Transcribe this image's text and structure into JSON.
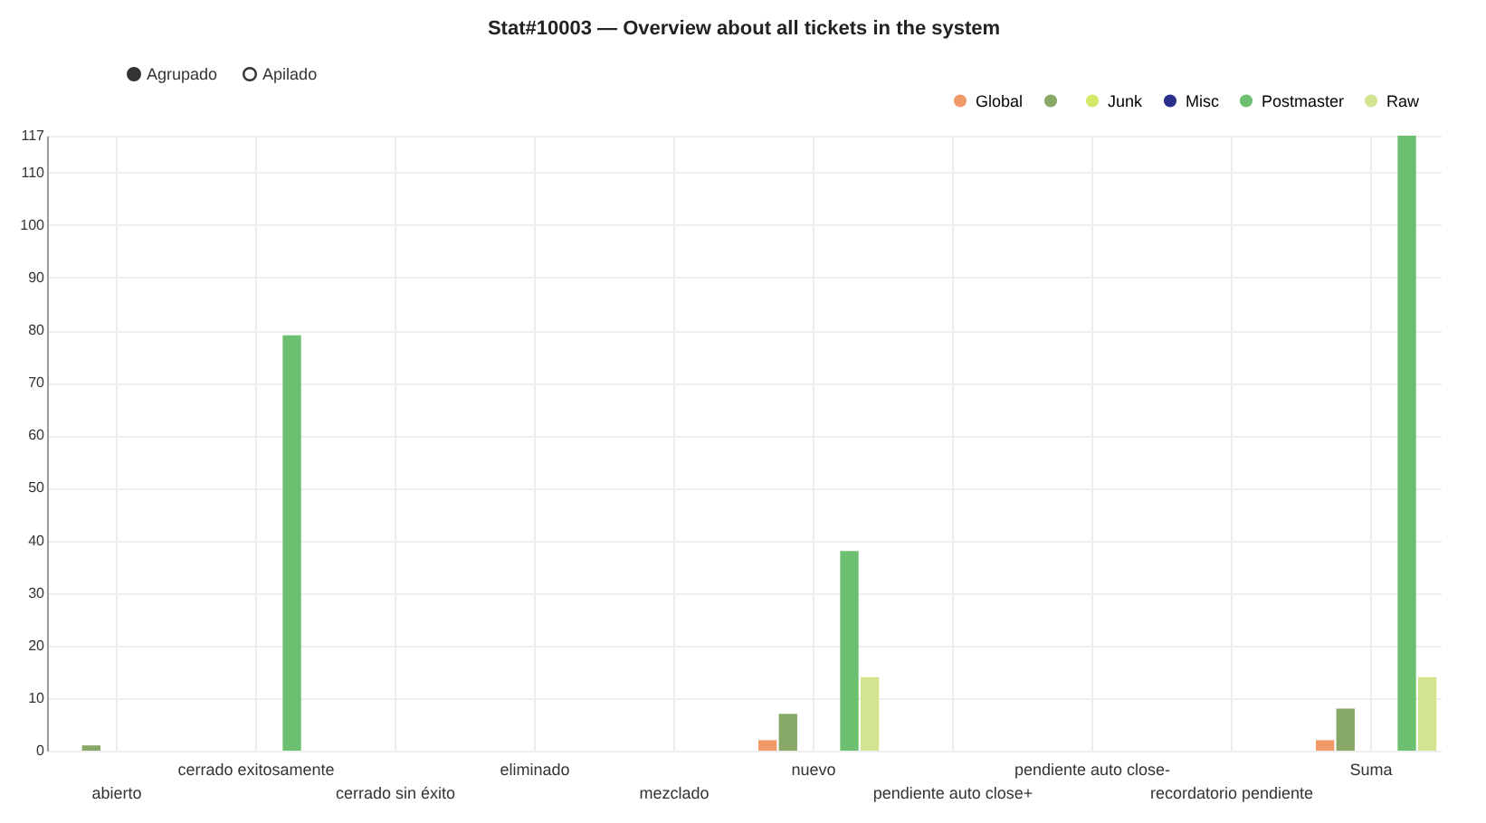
{
  "chart_data": {
    "type": "bar",
    "title": "Stat#10003 — Overview about all tickets in the system",
    "categories": [
      "abierto",
      "cerrado exitosamente",
      "cerrado sin éxito",
      "eliminado",
      "mezclado",
      "nuevo",
      "pendiente auto close+",
      "pendiente auto close-",
      "recordatorio pendiente",
      "Suma"
    ],
    "series": [
      {
        "name": "Global",
        "color": "#f09a6a",
        "values": [
          0,
          0,
          0,
          0,
          0,
          2,
          0,
          0,
          0,
          2
        ]
      },
      {
        "color": "#88a868",
        "values": [
          1,
          0,
          0,
          0,
          0,
          7,
          0,
          0,
          0,
          8
        ]
      },
      {
        "name": "Junk",
        "color": "#d6e86a",
        "values": [
          0,
          0,
          0,
          0,
          0,
          0,
          0,
          0,
          0,
          0
        ]
      },
      {
        "name": "Misc",
        "color": "#2a2f8a",
        "values": [
          0,
          0,
          0,
          0,
          0,
          0,
          0,
          0,
          0,
          0
        ]
      },
      {
        "name": "Postmaster",
        "color": "#6cc070",
        "values": [
          0,
          79,
          0,
          0,
          0,
          38,
          0,
          0,
          0,
          117
        ]
      },
      {
        "name": "Raw",
        "color": "#d2e490",
        "values": [
          0,
          0,
          0,
          0,
          0,
          14,
          0,
          0,
          0,
          14
        ]
      }
    ],
    "ylim": [
      0,
      117
    ],
    "yticks": [
      0,
      10,
      20,
      30,
      40,
      50,
      60,
      70,
      80,
      90,
      100,
      110,
      117
    ],
    "grid": true,
    "legend": "top right",
    "annotations": [
      "Agrupado",
      "Apilado"
    ]
  }
}
